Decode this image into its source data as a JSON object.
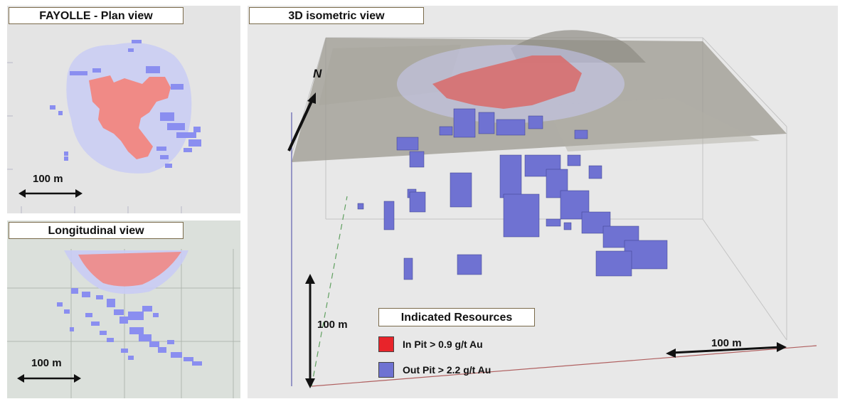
{
  "plan_view": {
    "title": "FAYOLLE - Plan view",
    "scale_label": "100 m"
  },
  "longitudinal_view": {
    "title": "Longitudinal view",
    "scale_label": "100 m"
  },
  "isometric_view": {
    "title": "3D isometric view",
    "north_label": "N",
    "vertical_scale_label": "100 m",
    "horizontal_scale_label": "100 m",
    "legend": {
      "title": "Indicated Resources",
      "items": [
        {
          "label": "In Pit > 0.9 g/t Au",
          "color": "#e8242a"
        },
        {
          "label": "Out Pit > 2.2 g/t Au",
          "color": "#6f72d2"
        }
      ]
    }
  },
  "colors": {
    "in_pit_block": "#f08a86",
    "out_pit_block": "#8a8ef0",
    "halo": "#c9ccf4"
  }
}
